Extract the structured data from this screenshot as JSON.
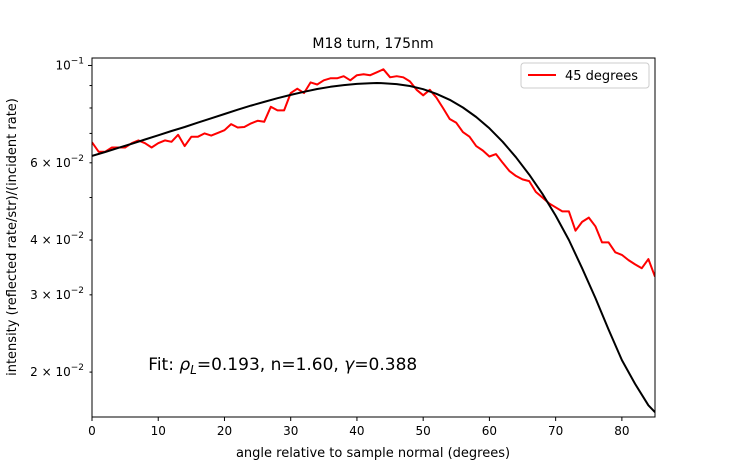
{
  "chart_data": {
    "type": "line",
    "title": "M18 turn, 175nm",
    "xlabel": "angle relative to sample normal (degrees)",
    "ylabel": "intensity (reflected rate/str)/(incident rate)",
    "xlim": [
      0,
      85
    ],
    "ylim": [
      0.0158,
      0.104
    ],
    "yscale": "log",
    "grid": false,
    "legend_position": "top-right",
    "xticks": [
      0,
      10,
      20,
      30,
      40,
      50,
      60,
      70,
      80
    ],
    "yticks_major": [
      {
        "value": 0.1,
        "mantissa": "10",
        "exp": "−1"
      }
    ],
    "yticks_minor": [
      {
        "value": 0.02,
        "mantissa": "2 × 10",
        "exp": "−2"
      },
      {
        "value": 0.03,
        "mantissa": "3 × 10",
        "exp": "−2"
      },
      {
        "value": 0.04,
        "mantissa": "4 × 10",
        "exp": "−2"
      },
      {
        "value": 0.06,
        "mantissa": "6 × 10",
        "exp": "−2"
      }
    ],
    "yticks_minor_unlabeled": [
      0.05,
      0.07,
      0.08,
      0.09
    ],
    "annotation": {
      "text_prefix": "Fit: ",
      "rho": "ρ",
      "rho_sub": "L",
      "rho_value": "=0.193, n=1.60, ",
      "gamma": "γ",
      "gamma_value": "=0.388",
      "x": 8.5,
      "y": 0.0202
    },
    "series": [
      {
        "name": "45 degrees",
        "color": "#ff0000",
        "x": [
          0,
          1,
          2,
          3,
          4,
          5,
          6,
          7,
          8,
          9,
          10,
          11,
          12,
          13,
          14,
          15,
          16,
          17,
          18,
          19,
          20,
          21,
          22,
          23,
          24,
          25,
          26,
          27,
          28,
          29,
          30,
          31,
          32,
          33,
          34,
          35,
          36,
          37,
          38,
          39,
          40,
          41,
          42,
          43,
          44,
          45,
          46,
          47,
          48,
          49,
          50,
          51,
          52,
          53,
          54,
          55,
          56,
          57,
          58,
          59,
          60,
          61,
          62,
          63,
          64,
          65,
          66,
          67,
          68,
          69,
          70,
          71,
          72,
          73,
          74,
          75,
          76,
          77,
          78,
          79,
          80,
          81,
          82,
          83,
          84,
          85
        ],
        "y": [
          0.0668,
          0.0636,
          0.0636,
          0.065,
          0.065,
          0.065,
          0.0665,
          0.0675,
          0.0665,
          0.065,
          0.0665,
          0.0675,
          0.067,
          0.0695,
          0.0655,
          0.0688,
          0.0688,
          0.07,
          0.0692,
          0.0702,
          0.0712,
          0.0735,
          0.0722,
          0.0724,
          0.0738,
          0.0748,
          0.0744,
          0.0805,
          0.079,
          0.079,
          0.0865,
          0.0885,
          0.0865,
          0.0915,
          0.0905,
          0.0925,
          0.0935,
          0.0935,
          0.0945,
          0.0925,
          0.095,
          0.0955,
          0.095,
          0.0965,
          0.098,
          0.094,
          0.0945,
          0.094,
          0.092,
          0.088,
          0.0855,
          0.088,
          0.0845,
          0.08,
          0.0755,
          0.074,
          0.0705,
          0.0688,
          0.0655,
          0.064,
          0.062,
          0.0628,
          0.06,
          0.0575,
          0.056,
          0.055,
          0.0545,
          0.0515,
          0.05,
          0.0485,
          0.0475,
          0.0465,
          0.0465,
          0.042,
          0.044,
          0.045,
          0.043,
          0.0395,
          0.0395,
          0.0375,
          0.037,
          0.036,
          0.0352,
          0.0345,
          0.0362,
          0.033
        ]
      },
      {
        "name": "",
        "color": "#000000",
        "x": [
          0,
          2,
          4,
          6,
          8,
          10,
          12,
          14,
          16,
          18,
          20,
          22,
          24,
          26,
          28,
          30,
          32,
          34,
          36,
          38,
          40,
          42,
          43,
          44,
          46,
          48,
          50,
          52,
          54,
          56,
          58,
          60,
          62,
          64,
          66,
          68,
          70,
          72,
          74,
          76,
          78,
          80,
          82,
          84,
          85
        ],
        "y": [
          0.0622,
          0.0635,
          0.0649,
          0.0663,
          0.0678,
          0.0693,
          0.0709,
          0.0724,
          0.0741,
          0.0758,
          0.0775,
          0.0793,
          0.081,
          0.0826,
          0.0842,
          0.0857,
          0.0871,
          0.0884,
          0.0894,
          0.0902,
          0.0908,
          0.0911,
          0.0912,
          0.0911,
          0.0907,
          0.0898,
          0.0883,
          0.0862,
          0.0835,
          0.0802,
          0.0763,
          0.0719,
          0.067,
          0.0618,
          0.0564,
          0.051,
          0.0455,
          0.04,
          0.0345,
          0.0295,
          0.025,
          0.0213,
          0.0188,
          0.0168,
          0.0162
        ]
      }
    ]
  }
}
